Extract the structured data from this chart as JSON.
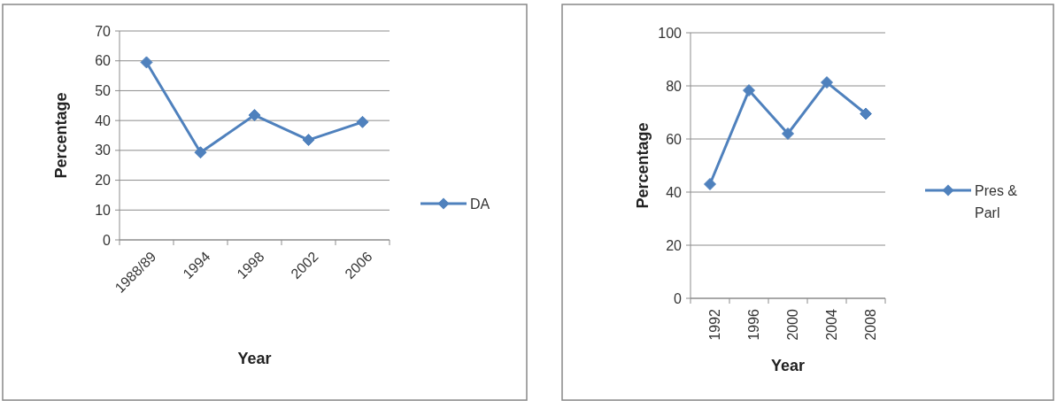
{
  "chart_data": [
    {
      "type": "line",
      "xlabel": "Year",
      "ylabel": "Percentage",
      "categories": [
        "1988/89",
        "1994",
        "1998",
        "2002",
        "2006"
      ],
      "series": [
        {
          "name": "DA",
          "color": "#4f81bd",
          "values": [
            59.5,
            29.3,
            41.8,
            33.5,
            39.5
          ]
        }
      ],
      "ylim": [
        0,
        70
      ],
      "yticks": [
        0,
        10,
        20,
        30,
        40,
        50,
        60,
        70
      ],
      "grid": "y",
      "legend": "right",
      "marker": "diamond",
      "line_style": "solid"
    },
    {
      "type": "line",
      "xlabel": "Year",
      "ylabel": "Percentage",
      "categories": [
        "1992",
        "1996",
        "2000",
        "2004",
        "2008"
      ],
      "series": [
        {
          "name": "Pres & Parl",
          "color": "#4f81bd",
          "values": [
            43,
            78.3,
            62,
            81.3,
            69.5
          ]
        }
      ],
      "ylim": [
        0,
        100
      ],
      "yticks": [
        0,
        20,
        40,
        60,
        80,
        100
      ],
      "grid": "y",
      "legend": "right",
      "marker": "diamond",
      "line_style": "solid"
    }
  ]
}
